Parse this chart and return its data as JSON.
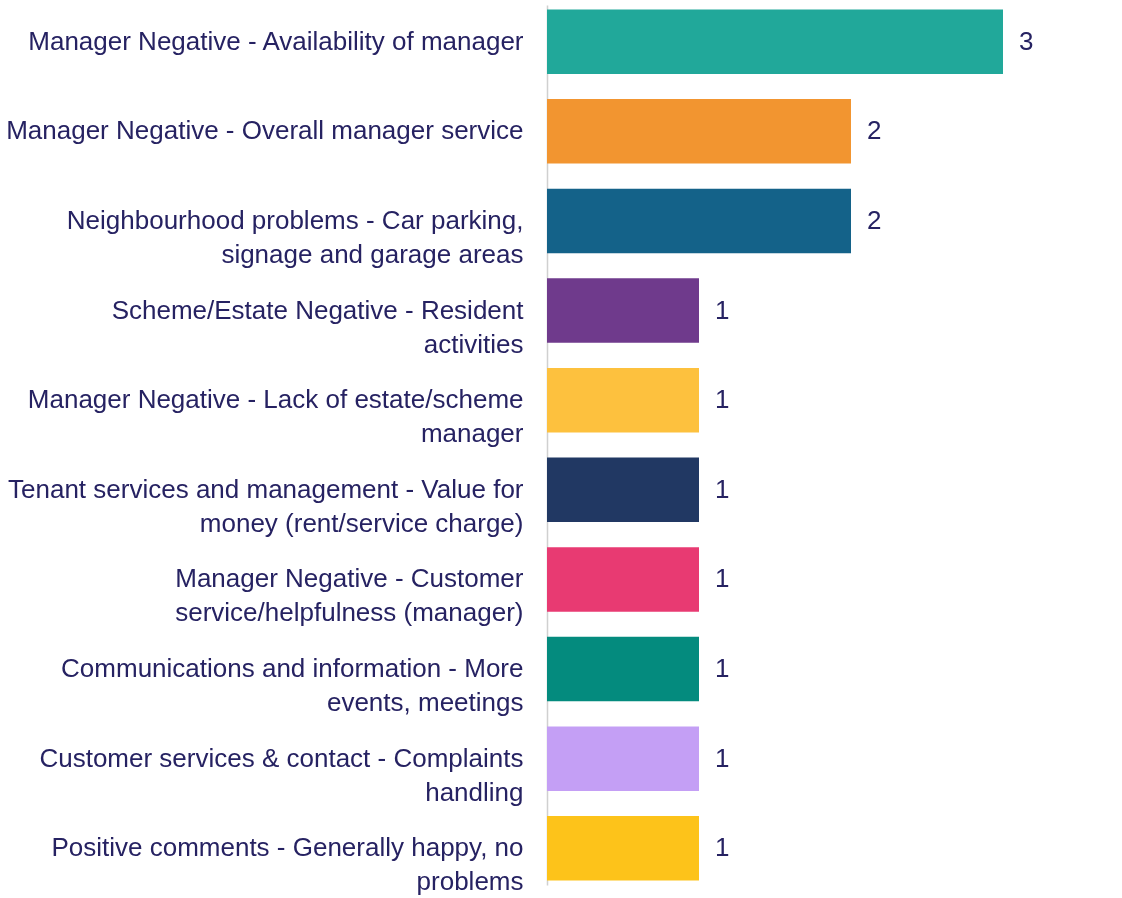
{
  "chart_data": {
    "type": "bar",
    "orientation": "horizontal",
    "data_labels": true,
    "grid": false,
    "tick_labels": "y",
    "categories": [
      "Manager Negative - Availability of manager",
      "Manager Negative - Overall manager service",
      "Neighbourhood problems - Car parking, signage and garage areas",
      "Scheme/Estate Negative - Resident activities",
      "Manager Negative - Lack of estate/scheme manager",
      "Tenant services and management - Value for money (rent/service charge)",
      "Manager Negative - Customer service/helpfulness (manager)",
      "Communications and information - More events, meetings",
      "Customer services & contact - Complaints handling",
      "Positive comments - Generally happy, no problems"
    ],
    "values": [
      3,
      2,
      2,
      1,
      1,
      1,
      1,
      1,
      1,
      1
    ],
    "colors": [
      "#21a89a",
      "#f29530",
      "#146289",
      "#6f3a8c",
      "#fdc13e",
      "#213863",
      "#e83a72",
      "#048b7e",
      "#c49ff5",
      "#fdc31a"
    ]
  }
}
